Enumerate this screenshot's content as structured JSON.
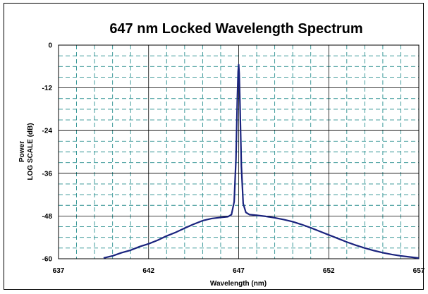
{
  "chart_data": {
    "type": "line",
    "title": "647 nm Locked Wavelength Spectrum",
    "xlabel": "Wavelength (nm)",
    "ylabel_line1": "Power",
    "ylabel_line2": "LOG SCALE (dB)",
    "xlim": [
      637,
      657
    ],
    "ylim": [
      -60,
      0
    ],
    "x_ticks": [
      637,
      642,
      647,
      652,
      657
    ],
    "y_ticks": [
      0,
      -12,
      -24,
      -36,
      -48,
      -60
    ],
    "x_minor_step": 1,
    "y_minor_step": 3,
    "grid_major": "solid",
    "grid_minor": "dashed",
    "grid_color": "#2a8f8f",
    "line_color": "#1a237e",
    "series": [
      {
        "x": [
          639.5,
          640.0,
          640.5,
          641.0,
          641.5,
          642.0,
          642.5,
          643.0,
          643.5,
          644.0,
          644.5,
          645.0,
          645.5,
          646.0,
          646.4,
          646.6,
          646.75,
          646.85,
          646.92,
          646.97,
          647.0,
          647.03,
          647.08,
          647.15,
          647.25,
          647.4,
          647.6,
          648.0,
          648.5,
          649.0,
          649.5,
          650.0,
          650.5,
          651.0,
          651.5,
          652.0,
          652.5,
          653.0,
          653.5,
          654.0,
          654.5,
          655.0,
          655.5,
          656.0,
          656.5,
          657.0
        ],
        "y": [
          -59.8,
          -59.2,
          -58.3,
          -57.6,
          -56.6,
          -55.8,
          -54.8,
          -53.6,
          -52.6,
          -51.4,
          -50.3,
          -49.3,
          -48.7,
          -48.4,
          -48.2,
          -47.6,
          -44.0,
          -32.0,
          -16.0,
          -7.5,
          -5.5,
          -8.0,
          -18.0,
          -34.0,
          -44.5,
          -47.0,
          -47.6,
          -47.8,
          -48.1,
          -48.5,
          -49.0,
          -49.6,
          -50.4,
          -51.3,
          -52.3,
          -53.3,
          -54.3,
          -55.3,
          -56.2,
          -57.0,
          -57.7,
          -58.3,
          -58.8,
          -59.2,
          -59.5,
          -59.8
        ]
      }
    ]
  }
}
